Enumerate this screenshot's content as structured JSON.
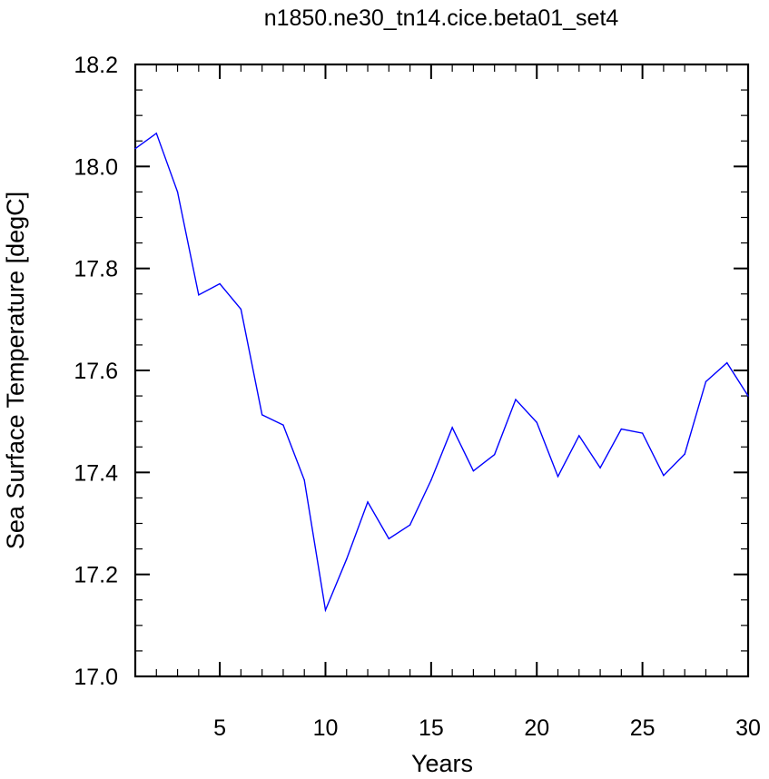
{
  "chart_data": {
    "type": "line",
    "title": "n1850.ne30_tn14.cice.beta01_set4",
    "xlabel": "Years",
    "ylabel": "Sea Surface Temperature [degC]",
    "xlim": [
      1,
      30
    ],
    "ylim": [
      17.0,
      18.2
    ],
    "xticks": [
      5,
      10,
      15,
      20,
      25,
      30
    ],
    "xtick_labels": [
      "5",
      "10",
      "15",
      "20",
      "25",
      "30"
    ],
    "yticks": [
      17.0,
      17.2,
      17.4,
      17.6,
      17.8,
      18.0,
      18.2
    ],
    "ytick_labels": [
      "17.0",
      "17.2",
      "17.4",
      "17.6",
      "17.8",
      "18.0",
      "18.2"
    ],
    "grid": false,
    "line_color": "#0000ff",
    "series": [
      {
        "x": [
          1,
          2,
          3,
          4,
          5,
          6,
          7,
          8,
          9,
          10,
          11,
          12,
          13,
          14,
          15,
          16,
          17,
          18,
          19,
          20,
          21,
          22,
          23,
          24,
          25,
          26,
          27,
          28,
          29,
          30
        ],
        "values": [
          18.035,
          18.065,
          17.95,
          17.748,
          17.77,
          17.72,
          17.513,
          17.493,
          17.385,
          17.13,
          17.23,
          17.342,
          17.27,
          17.297,
          17.385,
          17.488,
          17.403,
          17.435,
          17.543,
          17.498,
          17.392,
          17.472,
          17.409,
          17.485,
          17.477,
          17.394,
          17.436,
          17.578,
          17.615,
          17.55
        ]
      }
    ]
  }
}
